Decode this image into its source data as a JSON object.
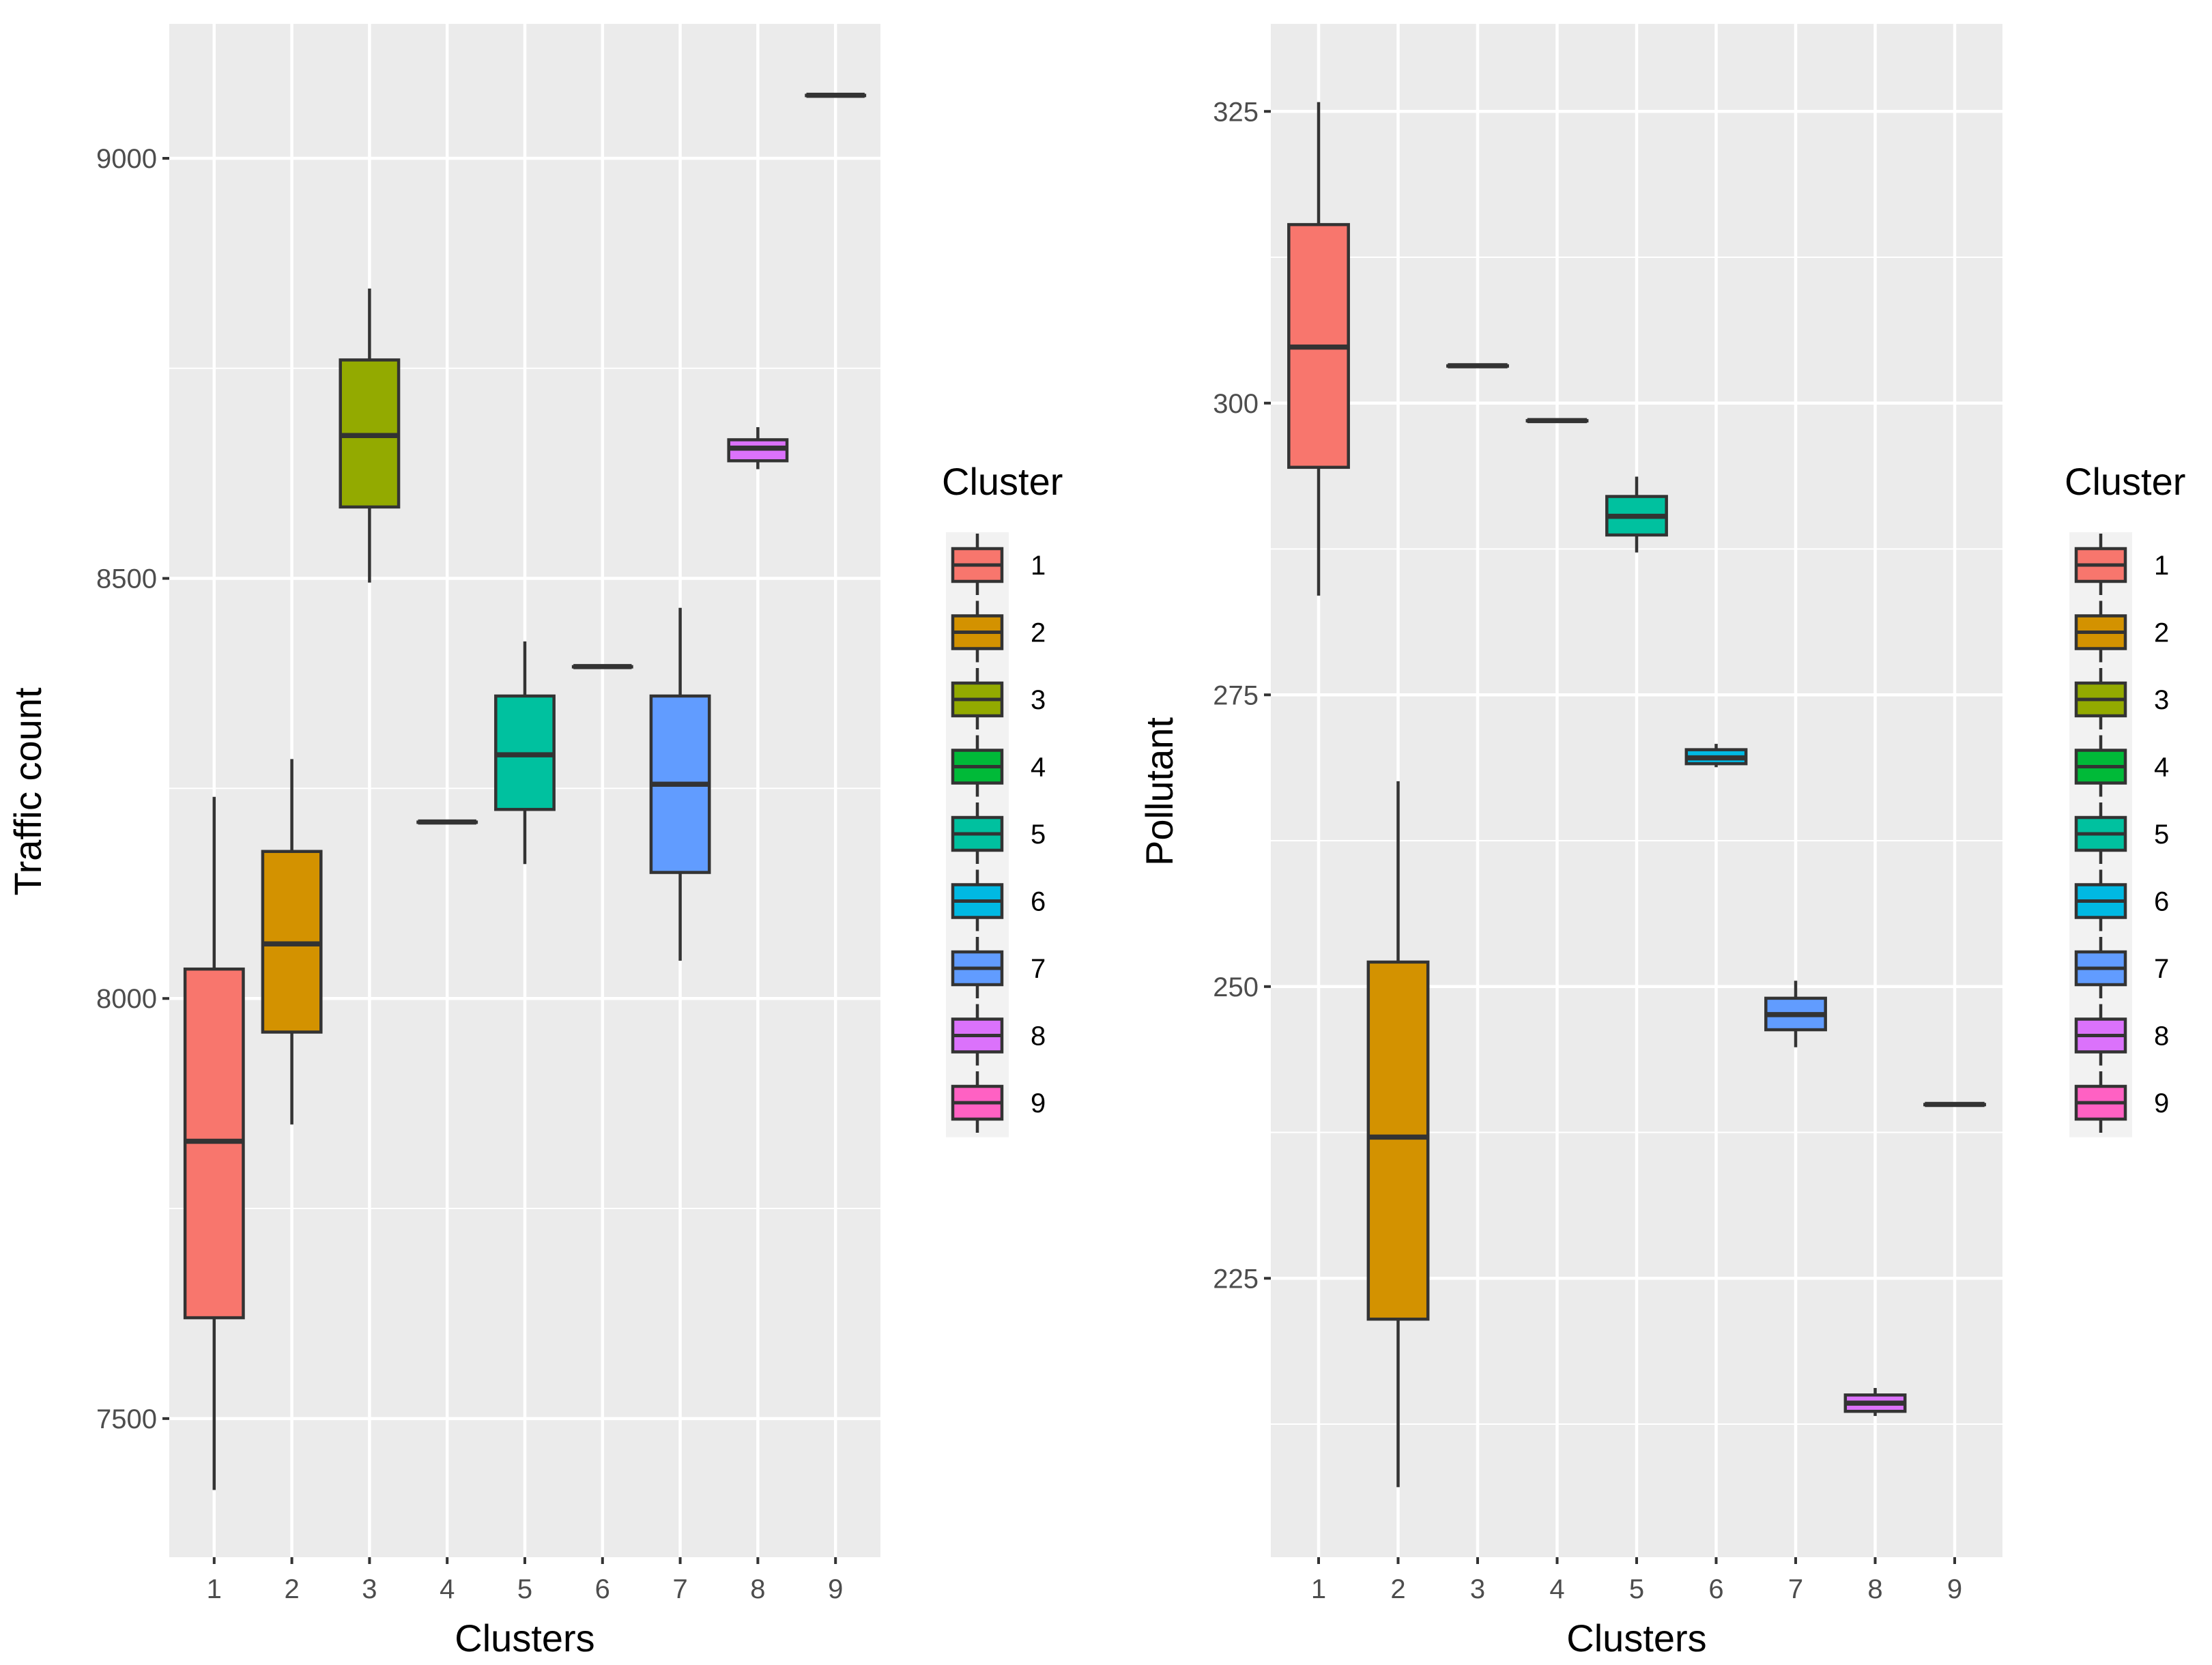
{
  "colors": {
    "panel_bg": "#ebebeb",
    "grid_major": "#ffffff",
    "box_outline": "#333333",
    "legend_key_bg": "#f2f2f2",
    "tick_text": "#4d4d4d"
  },
  "chart_data": [
    {
      "type": "box",
      "title": "",
      "xlabel": "Clusters",
      "ylabel": "Traffic count",
      "categories": [
        "1",
        "2",
        "3",
        "4",
        "5",
        "6",
        "7",
        "8",
        "9"
      ],
      "ylim": [
        7335,
        9160
      ],
      "yticks": [
        7500,
        8000,
        8500,
        9000
      ],
      "ytick_labels": [
        "7500",
        "8000",
        "8500",
        "9000"
      ],
      "legend": {
        "title": "Cluster",
        "labels": [
          "1",
          "2",
          "3",
          "4",
          "5",
          "6",
          "7",
          "8",
          "9"
        ],
        "colors": [
          "#F8766D",
          "#D39200",
          "#93AA00",
          "#00BA38",
          "#00C19F",
          "#00B9E3",
          "#619CFF",
          "#DB72FB",
          "#FF61C3"
        ],
        "placement": "right"
      },
      "series": [
        {
          "name": "1",
          "whisker_low": 7415,
          "q1": 7620,
          "median": 7830,
          "q3": 8035,
          "whisker_high": 8240
        },
        {
          "name": "2",
          "whisker_low": 7850,
          "q1": 7960,
          "median": 8065,
          "q3": 8175,
          "whisker_high": 8285
        },
        {
          "name": "3",
          "whisker_low": 8495,
          "q1": 8585,
          "median": 8670,
          "q3": 8760,
          "whisker_high": 8845
        },
        {
          "name": "4",
          "whisker_low": 8210,
          "q1": 8210,
          "median": 8210,
          "q3": 8210,
          "whisker_high": 8210
        },
        {
          "name": "5",
          "whisker_low": 8160,
          "q1": 8225,
          "median": 8290,
          "q3": 8360,
          "whisker_high": 8425
        },
        {
          "name": "6",
          "whisker_low": 8395,
          "q1": 8395,
          "median": 8395,
          "q3": 8395,
          "whisker_high": 8395
        },
        {
          "name": "7",
          "whisker_low": 8045,
          "q1": 8150,
          "median": 8255,
          "q3": 8360,
          "whisker_high": 8465
        },
        {
          "name": "8",
          "whisker_low": 8630,
          "q1": 8640,
          "median": 8655,
          "q3": 8665,
          "whisker_high": 8680
        },
        {
          "name": "9",
          "whisker_low": 9075,
          "q1": 9075,
          "median": 9075,
          "q3": 9075,
          "whisker_high": 9075
        }
      ]
    },
    {
      "type": "box",
      "title": "",
      "xlabel": "Clusters",
      "ylabel": "Pollutant",
      "categories": [
        "1",
        "2",
        "3",
        "4",
        "5",
        "6",
        "7",
        "8",
        "9"
      ],
      "ylim": [
        201.1,
        332.5
      ],
      "yticks": [
        225,
        250,
        275,
        300,
        325
      ],
      "ytick_labels": [
        "225",
        "250",
        "275",
        "300",
        "325"
      ],
      "legend": {
        "title": "Cluster",
        "labels": [
          "1",
          "2",
          "3",
          "4",
          "5",
          "6",
          "7",
          "8",
          "9"
        ],
        "colors": [
          "#F8766D",
          "#D39200",
          "#93AA00",
          "#00BA38",
          "#00C19F",
          "#00B9E3",
          "#619CFF",
          "#DB72FB",
          "#FF61C3"
        ],
        "placement": "right"
      },
      "series": [
        {
          "name": "1",
          "whisker_low": 283.5,
          "q1": 294.5,
          "median": 304.8,
          "q3": 315.3,
          "whisker_high": 325.8
        },
        {
          "name": "2",
          "whisker_low": 207.1,
          "q1": 221.5,
          "median": 237.1,
          "q3": 252.1,
          "whisker_high": 267.6
        },
        {
          "name": "3",
          "whisker_low": 303.2,
          "q1": 303.2,
          "median": 303.2,
          "q3": 303.2,
          "whisker_high": 303.2
        },
        {
          "name": "4",
          "whisker_low": 298.5,
          "q1": 298.5,
          "median": 298.5,
          "q3": 298.5,
          "whisker_high": 298.5
        },
        {
          "name": "5",
          "whisker_low": 287.2,
          "q1": 288.7,
          "median": 290.3,
          "q3": 292.0,
          "whisker_high": 293.7
        },
        {
          "name": "6",
          "whisker_low": 268.8,
          "q1": 269.1,
          "median": 269.6,
          "q3": 270.3,
          "whisker_high": 270.8
        },
        {
          "name": "7",
          "whisker_low": 244.8,
          "q1": 246.3,
          "median": 247.6,
          "q3": 249.0,
          "whisker_high": 250.5
        },
        {
          "name": "8",
          "whisker_low": 213.2,
          "q1": 213.6,
          "median": 214.3,
          "q3": 215.0,
          "whisker_high": 215.6
        },
        {
          "name": "9",
          "whisker_low": 239.9,
          "q1": 239.9,
          "median": 239.9,
          "q3": 239.9,
          "whisker_high": 239.9
        }
      ]
    }
  ]
}
